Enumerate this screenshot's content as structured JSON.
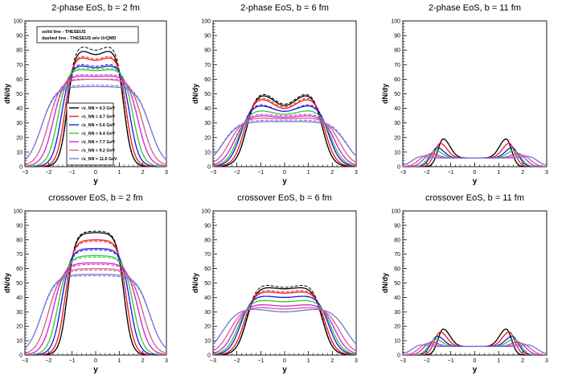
{
  "colors": {
    "4.3": "#000000",
    "4.7": "#ee1c1c",
    "5.6": "#1c1ce0",
    "6.4": "#33cc33",
    "7.7": "#dd22dd",
    "9.2": "#cc6688",
    "11.6": "#7777dd"
  },
  "energies": [
    "4.3",
    "4.7",
    "5.6",
    "6.4",
    "7.7",
    "9.2",
    "11.6"
  ],
  "legend_style": {
    "solid": "solid line - THESEUS",
    "dashed": "dashed line - THESEUS w/o UrQMD"
  },
  "legend_energy_labels": [
    "√s_NN = 4.3 GeV",
    "√s_NN = 4.7 GeV",
    "√s_NN = 5.6 GeV",
    "√s_NN = 6.4 GeV",
    "√s_NN = 7.7 GeV",
    "√s_NN = 9.2 GeV",
    "√s_NN = 11.6 GeV"
  ],
  "chart_data": [
    {
      "type": "line",
      "title": "2-phase EoS, b = 2 fm",
      "xlabel": "y",
      "ylabel": "dN/dy",
      "xlim": [
        -3,
        3
      ],
      "ylim": [
        0,
        100
      ],
      "xticks": [
        "−3",
        "−2",
        "−1",
        "0",
        "1",
        "2",
        "3"
      ],
      "yticks": [
        "0",
        "10",
        "20",
        "30",
        "40",
        "50",
        "60",
        "70",
        "80",
        "90",
        "100"
      ],
      "shape": "twopeak_wide",
      "series": [
        {
          "name": "4.3 GeV",
          "edge": 1.2,
          "peak": 82,
          "dip": 77,
          "dashed_peak": 85,
          "dashed_dip": 80
        },
        {
          "name": "4.7 GeV",
          "edge": 1.3,
          "peak": 77,
          "dip": 73,
          "dashed_peak": 78,
          "dashed_dip": 74
        },
        {
          "name": "5.6 GeV",
          "edge": 1.45,
          "peak": 71,
          "dip": 68,
          "dashed_peak": 72,
          "dashed_dip": 69
        },
        {
          "name": "6.4 GeV",
          "edge": 1.6,
          "peak": 68,
          "dip": 66,
          "dashed_peak": 69,
          "dashed_dip": 67
        },
        {
          "name": "7.7 GeV",
          "edge": 1.8,
          "peak": 63,
          "dip": 62,
          "dashed_peak": 64,
          "dashed_dip": 63
        },
        {
          "name": "9.2 GeV",
          "edge": 2.0,
          "peak": 60,
          "dip": 60,
          "dashed_peak": 61,
          "dashed_dip": 60
        },
        {
          "name": "11.6 GeV",
          "edge": 2.3,
          "peak": 55,
          "dip": 55,
          "dashed_peak": 56,
          "dashed_dip": 56
        }
      ]
    },
    {
      "type": "line",
      "title": "2-phase EoS, b = 6 fm",
      "xlabel": "y",
      "ylabel": "dN/dy",
      "xlim": [
        -3,
        3
      ],
      "ylim": [
        0,
        100
      ],
      "xticks": [
        "−3",
        "−2",
        "−1",
        "0",
        "1",
        "2",
        "3"
      ],
      "yticks": [
        "0",
        "10",
        "20",
        "30",
        "40",
        "50",
        "60",
        "70",
        "80",
        "90",
        "100"
      ],
      "shape": "twopeak_mid",
      "series": [
        {
          "name": "4.3 GeV",
          "edge": 1.6,
          "peak": 52,
          "dip": 42,
          "dashed_peak": 53,
          "dashed_dip": 43
        },
        {
          "name": "4.7 GeV",
          "edge": 1.7,
          "peak": 49,
          "dip": 40,
          "dashed_peak": 50,
          "dashed_dip": 41
        },
        {
          "name": "5.6 GeV",
          "edge": 1.85,
          "peak": 44,
          "dip": 38,
          "dashed_peak": 45,
          "dashed_dip": 38
        },
        {
          "name": "6.4 GeV",
          "edge": 1.95,
          "peak": 40,
          "dip": 36,
          "dashed_peak": 40,
          "dashed_dip": 36
        },
        {
          "name": "7.7 GeV",
          "edge": 2.1,
          "peak": 36,
          "dip": 34,
          "dashed_peak": 37,
          "dashed_dip": 35
        },
        {
          "name": "9.2 GeV",
          "edge": 2.3,
          "peak": 34,
          "dip": 33,
          "dashed_peak": 34,
          "dashed_dip": 33
        },
        {
          "name": "11.6 GeV",
          "edge": 2.6,
          "peak": 31,
          "dip": 31,
          "dashed_peak": 32,
          "dashed_dip": 32
        }
      ]
    },
    {
      "type": "line",
      "title": "2-phase EoS, b = 11 fm",
      "xlabel": "y",
      "ylabel": "dN/dy",
      "xlim": [
        -3,
        3
      ],
      "ylim": [
        0,
        100
      ],
      "xticks": [
        "−3",
        "−2",
        "−1",
        "0",
        "1",
        "2",
        "3"
      ],
      "yticks": [
        "0",
        "10",
        "20",
        "30",
        "40",
        "50",
        "60",
        "70",
        "80",
        "90",
        "100"
      ],
      "shape": "twopeak_narrow",
      "series": [
        {
          "name": "4.3 GeV",
          "edge": 1.6,
          "peak": 19,
          "dip": 6,
          "dashed_peak": 19,
          "dashed_dip": 6
        },
        {
          "name": "4.7 GeV",
          "edge": 1.75,
          "peak": 16,
          "dip": 6,
          "dashed_peak": 16,
          "dashed_dip": 6
        },
        {
          "name": "5.6 GeV",
          "edge": 1.9,
          "peak": 13,
          "dip": 6,
          "dashed_peak": 13,
          "dashed_dip": 6
        },
        {
          "name": "6.4 GeV",
          "edge": 2.0,
          "peak": 11,
          "dip": 6,
          "dashed_peak": 11,
          "dashed_dip": 6
        },
        {
          "name": "7.7 GeV",
          "edge": 2.2,
          "peak": 9,
          "dip": 6,
          "dashed_peak": 9,
          "dashed_dip": 6
        },
        {
          "name": "9.2 GeV",
          "edge": 2.4,
          "peak": 8,
          "dip": 6,
          "dashed_peak": 8,
          "dashed_dip": 6
        },
        {
          "name": "11.6 GeV",
          "edge": 2.7,
          "peak": 7,
          "dip": 6,
          "dashed_peak": 7,
          "dashed_dip": 6
        }
      ]
    },
    {
      "type": "line",
      "title": "crossover EoS, b = 2 fm",
      "xlabel": "y",
      "ylabel": "dN/dy",
      "xlim": [
        -3,
        3
      ],
      "ylim": [
        0,
        100
      ],
      "xticks": [
        "−3",
        "−2",
        "−1",
        "0",
        "1",
        "2",
        "3"
      ],
      "yticks": [
        "0",
        "10",
        "20",
        "30",
        "40",
        "50",
        "60",
        "70",
        "80",
        "90",
        "100"
      ],
      "shape": "plateau",
      "series": [
        {
          "name": "4.3 GeV",
          "edge": 1.2,
          "peak": 85,
          "dip": 85,
          "dashed_peak": 86,
          "dashed_dip": 86
        },
        {
          "name": "4.7 GeV",
          "edge": 1.3,
          "peak": 80,
          "dip": 80,
          "dashed_peak": 79,
          "dashed_dip": 79
        },
        {
          "name": "5.6 GeV",
          "edge": 1.45,
          "peak": 74,
          "dip": 74,
          "dashed_peak": 73,
          "dashed_dip": 73
        },
        {
          "name": "6.4 GeV",
          "edge": 1.6,
          "peak": 69,
          "dip": 69,
          "dashed_peak": 68,
          "dashed_dip": 68
        },
        {
          "name": "7.7 GeV",
          "edge": 1.8,
          "peak": 64,
          "dip": 64,
          "dashed_peak": 63,
          "dashed_dip": 63
        },
        {
          "name": "9.2 GeV",
          "edge": 2.0,
          "peak": 60,
          "dip": 60,
          "dashed_peak": 59,
          "dashed_dip": 59
        },
        {
          "name": "11.6 GeV",
          "edge": 2.3,
          "peak": 56,
          "dip": 56,
          "dashed_peak": 55,
          "dashed_dip": 55
        }
      ]
    },
    {
      "type": "line",
      "title": "crossover EoS, b = 6 fm",
      "xlabel": "y",
      "ylabel": "dN/dy",
      "xlim": [
        -3,
        3
      ],
      "ylim": [
        0,
        100
      ],
      "xticks": [
        "−3",
        "−2",
        "−1",
        "0",
        "1",
        "2",
        "3"
      ],
      "yticks": [
        "0",
        "10",
        "20",
        "30",
        "40",
        "50",
        "60",
        "70",
        "80",
        "90",
        "100"
      ],
      "shape": "twopeak_mid",
      "series": [
        {
          "name": "4.3 GeV",
          "edge": 1.6,
          "peak": 48,
          "dip": 46,
          "dashed_peak": 50,
          "dashed_dip": 47
        },
        {
          "name": "4.7 GeV",
          "edge": 1.7,
          "peak": 45,
          "dip": 43,
          "dashed_peak": 46,
          "dashed_dip": 44
        },
        {
          "name": "5.6 GeV",
          "edge": 1.85,
          "peak": 42,
          "dip": 40,
          "dashed_peak": 42,
          "dashed_dip": 40
        },
        {
          "name": "6.4 GeV",
          "edge": 1.95,
          "peak": 39,
          "dip": 37,
          "dashed_peak": 39,
          "dashed_dip": 37
        },
        {
          "name": "7.7 GeV",
          "edge": 2.1,
          "peak": 36,
          "dip": 34,
          "dashed_peak": 36,
          "dashed_dip": 34
        },
        {
          "name": "9.2 GeV",
          "edge": 2.3,
          "peak": 34,
          "dip": 32,
          "dashed_peak": 34,
          "dashed_dip": 32
        },
        {
          "name": "11.6 GeV",
          "edge": 2.6,
          "peak": 33,
          "dip": 30,
          "dashed_peak": 33,
          "dashed_dip": 30
        }
      ]
    },
    {
      "type": "line",
      "title": "crossover EoS, b = 11 fm",
      "xlabel": "y",
      "ylabel": "dN/dy",
      "xlim": [
        -3,
        3
      ],
      "ylim": [
        0,
        100
      ],
      "xticks": [
        "−3",
        "−2",
        "−1",
        "0",
        "1",
        "2",
        "3"
      ],
      "yticks": [
        "0",
        "10",
        "20",
        "30",
        "40",
        "50",
        "60",
        "70",
        "80",
        "90",
        "100"
      ],
      "shape": "twopeak_narrow",
      "series": [
        {
          "name": "4.3 GeV",
          "edge": 1.6,
          "peak": 18,
          "dip": 6,
          "dashed_peak": 18,
          "dashed_dip": 6
        },
        {
          "name": "4.7 GeV",
          "edge": 1.75,
          "peak": 16,
          "dip": 6,
          "dashed_peak": 16,
          "dashed_dip": 6
        },
        {
          "name": "5.6 GeV",
          "edge": 1.9,
          "peak": 13,
          "dip": 6,
          "dashed_peak": 13,
          "dashed_dip": 6
        },
        {
          "name": "6.4 GeV",
          "edge": 2.0,
          "peak": 11,
          "dip": 6,
          "dashed_peak": 11,
          "dashed_dip": 6
        },
        {
          "name": "7.7 GeV",
          "edge": 2.2,
          "peak": 9,
          "dip": 6,
          "dashed_peak": 9,
          "dashed_dip": 6
        },
        {
          "name": "9.2 GeV",
          "edge": 2.4,
          "peak": 8,
          "dip": 6,
          "dashed_peak": 8,
          "dashed_dip": 6
        },
        {
          "name": "11.6 GeV",
          "edge": 2.7,
          "peak": 7,
          "dip": 6,
          "dashed_peak": 7,
          "dashed_dip": 6
        }
      ]
    }
  ]
}
